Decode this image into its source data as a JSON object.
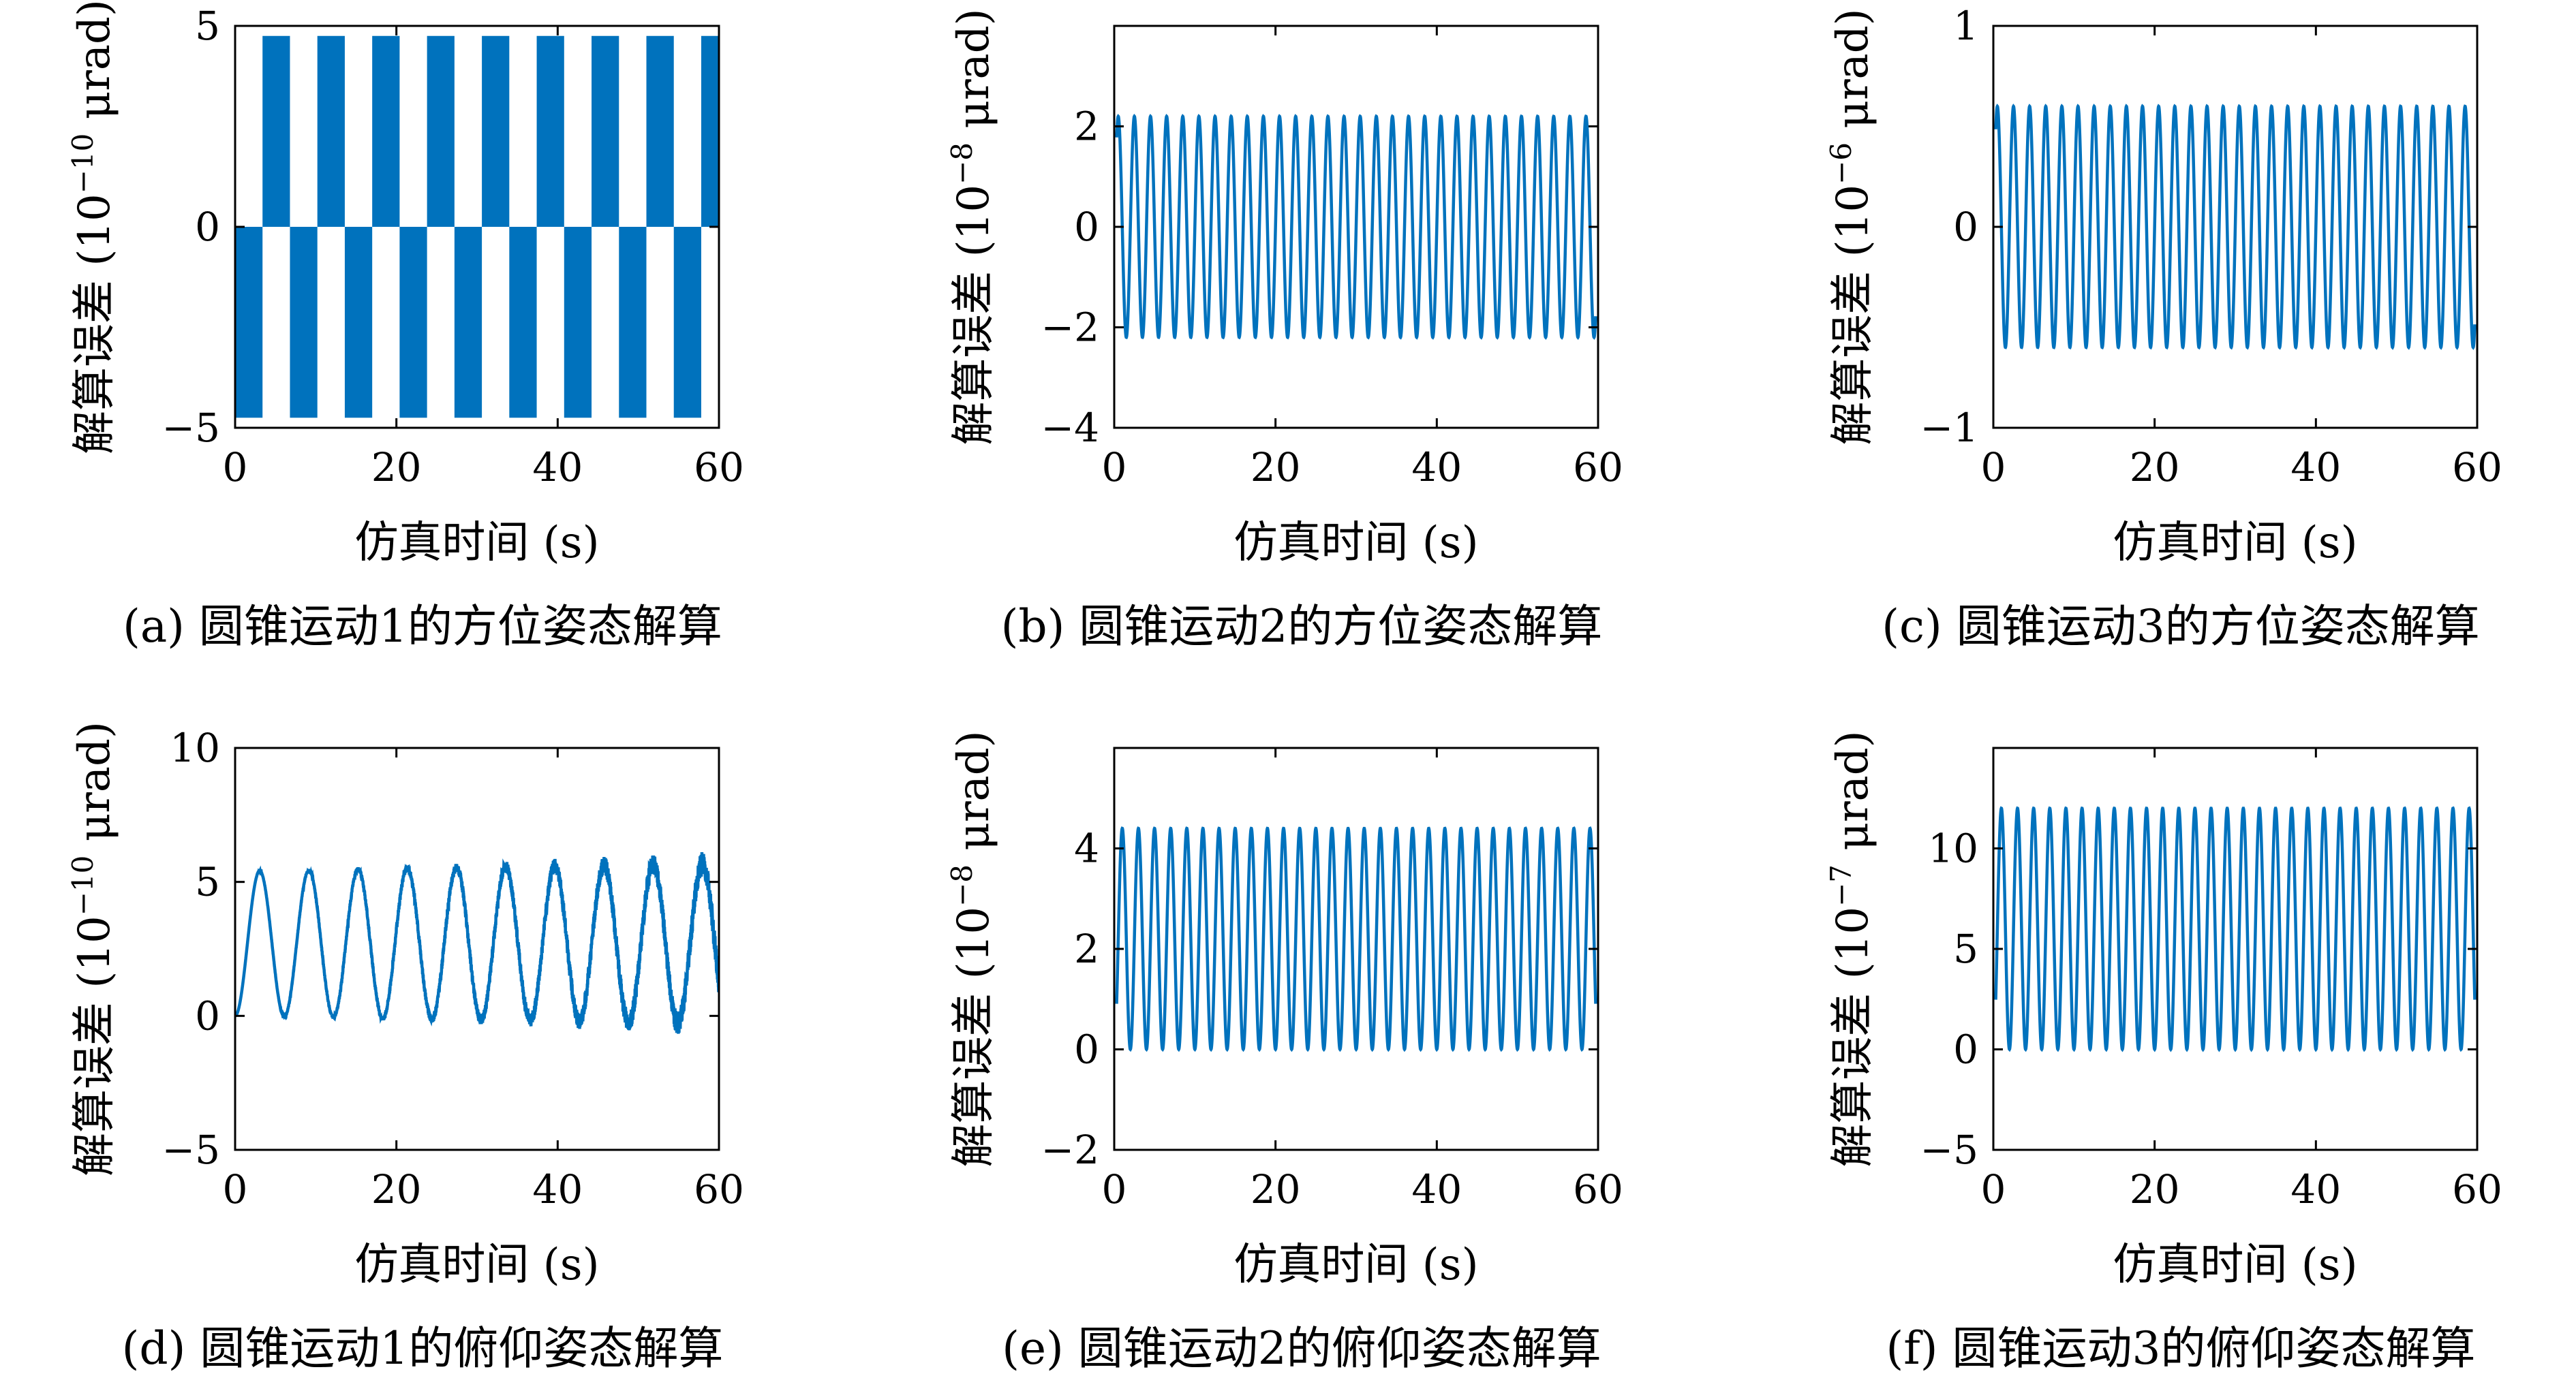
{
  "figure": {
    "colors": {
      "series": "#0072bd",
      "axis": "#000000",
      "background": "#ffffff"
    }
  },
  "chart_data": [
    {
      "id": "a",
      "type": "bar",
      "caption": "(a) 圆锥运动1的方位姿态解算",
      "xlabel": "仿真时间 (s)",
      "ylabel": {
        "main": "解算误差 (10",
        "exp": "−10",
        "unit": " μrad)"
      },
      "xlim": [
        0,
        60
      ],
      "ylim": [
        -5,
        5
      ],
      "xticks": [
        "0",
        "20",
        "40",
        "60"
      ],
      "yticks": [
        "−5",
        "0",
        "5"
      ],
      "ytick_values": [
        -5,
        0,
        5
      ],
      "grid": false,
      "series": [
        {
          "kind": "square-wave",
          "amplitude": 4.75,
          "period": 6.8,
          "start_phase": "negative"
        }
      ]
    },
    {
      "id": "b",
      "type": "line",
      "caption": "(b) 圆锥运动2的方位姿态解算",
      "xlabel": "仿真时间 (s)",
      "ylabel": {
        "main": "解算误差 (10",
        "exp": "−8",
        "unit": " μrad)"
      },
      "xlim": [
        0,
        60
      ],
      "ylim": [
        -4,
        4
      ],
      "xticks": [
        "0",
        "20",
        "40",
        "60"
      ],
      "yticks": [
        "−4",
        "−2",
        "0",
        "2"
      ],
      "ytick_values": [
        -4,
        -2,
        0,
        2
      ],
      "grid": false,
      "series": [
        {
          "kind": "sine",
          "amplitude": 2.2,
          "offset": 0,
          "period": 2.0,
          "x_start": 0.3,
          "x_end": 59.7
        }
      ]
    },
    {
      "id": "c",
      "type": "line",
      "caption": "(c) 圆锥运动3的方位姿态解算",
      "xlabel": "仿真时间 (s)",
      "ylabel": {
        "main": "解算误差 (10",
        "exp": "−6",
        "unit": " μrad)"
      },
      "xlim": [
        0,
        60
      ],
      "ylim": [
        -1,
        1
      ],
      "xticks": [
        "0",
        "20",
        "40",
        "60"
      ],
      "yticks": [
        "−1",
        "0",
        "1"
      ],
      "ytick_values": [
        -1,
        0,
        1
      ],
      "grid": false,
      "series": [
        {
          "kind": "sine",
          "amplitude": 0.6,
          "offset": 0,
          "period": 2.0,
          "x_start": 0.3,
          "x_end": 59.7
        }
      ]
    },
    {
      "id": "d",
      "type": "line",
      "caption": "(d) 圆锥运动1的俯仰姿态解算",
      "xlabel": "仿真时间 (s)",
      "ylabel": {
        "main": "解算误差 (10",
        "exp": "−10",
        "unit": " μrad)"
      },
      "xlim": [
        0,
        60
      ],
      "ylim": [
        -5,
        10
      ],
      "xticks": [
        "0",
        "20",
        "40",
        "60"
      ],
      "yticks": [
        "−5",
        "0",
        "5",
        "10"
      ],
      "ytick_values": [
        -5,
        0,
        5,
        10
      ],
      "grid": false,
      "series": [
        {
          "kind": "noisy-sine",
          "amplitude_start": 2.7,
          "amplitude_end": 3.0,
          "offset": 2.7,
          "period": 6.1,
          "noise_growth": 0.45
        }
      ]
    },
    {
      "id": "e",
      "type": "line",
      "caption": "(e) 圆锥运动2的俯仰姿态解算",
      "xlabel": "仿真时间 (s)",
      "ylabel": {
        "main": "解算误差 (10",
        "exp": "−8",
        "unit": " μrad)"
      },
      "xlim": [
        0,
        60
      ],
      "ylim": [
        -2,
        6
      ],
      "xticks": [
        "0",
        "20",
        "40",
        "60"
      ],
      "yticks": [
        "−2",
        "0",
        "2",
        "4"
      ],
      "ytick_values": [
        -2,
        0,
        2,
        4
      ],
      "grid": false,
      "series": [
        {
          "kind": "sine",
          "amplitude": 2.2,
          "offset": 2.2,
          "period": 2.0,
          "x_start": 0.3,
          "x_end": 59.7
        }
      ]
    },
    {
      "id": "f",
      "type": "line",
      "caption": "(f) 圆锥运动3的俯仰姿态解算",
      "xlabel": "仿真时间 (s)",
      "ylabel": {
        "main": "解算误差 (10",
        "exp": "−7",
        "unit": " μrad)"
      },
      "xlim": [
        0,
        60
      ],
      "ylim": [
        -5,
        15
      ],
      "xticks": [
        "0",
        "20",
        "40",
        "60"
      ],
      "yticks": [
        "−5",
        "0",
        "5",
        "10"
      ],
      "ytick_values": [
        -5,
        0,
        5,
        10
      ],
      "grid": false,
      "series": [
        {
          "kind": "sine",
          "amplitude": 6.0,
          "offset": 6.0,
          "period": 2.0,
          "x_start": 0.3,
          "x_end": 59.7
        }
      ]
    }
  ]
}
